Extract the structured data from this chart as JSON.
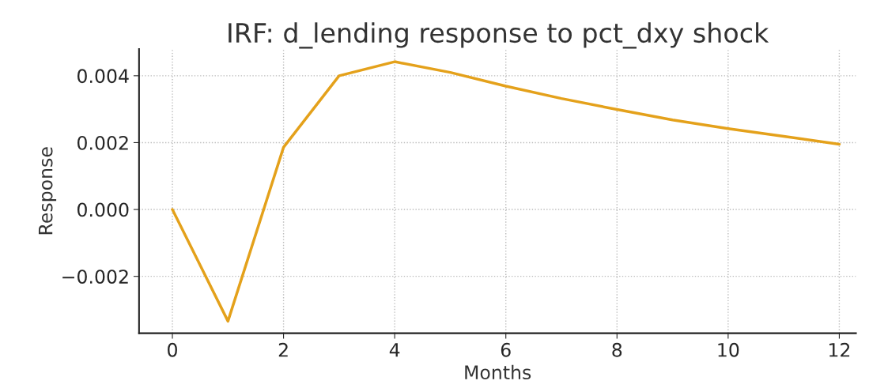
{
  "chart_data": {
    "type": "line",
    "title": "IRF: d_lending response to pct_dxy shock",
    "xlabel": "Months",
    "ylabel": "Response",
    "x": [
      0,
      1,
      2,
      3,
      4,
      5,
      6,
      7,
      8,
      9,
      10,
      11,
      12
    ],
    "series": [
      {
        "color": "#e4a11b",
        "values": [
          0.0,
          -0.00334,
          0.00186,
          0.004,
          0.00442,
          0.0041,
          0.00369,
          0.00332,
          0.00299,
          0.00268,
          0.00242,
          0.00219,
          0.00195
        ]
      }
    ],
    "xlim": [
      -0.6,
      12.3
    ],
    "ylim": [
      -0.0037,
      0.0048
    ],
    "xticks": [
      0,
      2,
      4,
      6,
      8,
      10,
      12
    ],
    "yticks": [
      {
        "value": -0.002,
        "label": "−0.002"
      },
      {
        "value": 0,
        "label": "0.000"
      },
      {
        "value": 0.002,
        "label": "0.002"
      },
      {
        "value": 0.004,
        "label": "0.004"
      }
    ],
    "grid": true,
    "line_style": "solid",
    "marker": "none"
  }
}
